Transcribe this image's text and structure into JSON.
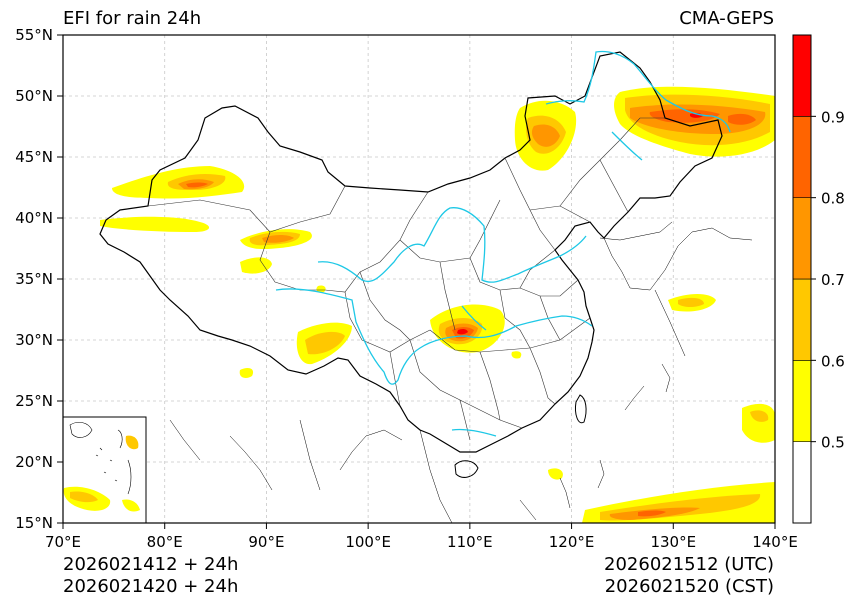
{
  "title_left": "EFI for rain 24h",
  "title_right": "CMA-GEPS",
  "info": {
    "left_line1": "2026021412 + 24h",
    "left_line2": "2026021420 + 24h",
    "right_line1": "2026021512 (UTC)",
    "right_line2": "2026021520 (CST)"
  },
  "map": {
    "lon_range": [
      70,
      140
    ],
    "lat_range": [
      15,
      55
    ],
    "lon_ticks": [
      70,
      80,
      90,
      100,
      110,
      120,
      130,
      140
    ],
    "lon_labels": [
      "70°E",
      "80°E",
      "90°E",
      "100°E",
      "110°E",
      "120°E",
      "130°E",
      "140°E"
    ],
    "lat_ticks": [
      15,
      20,
      25,
      30,
      35,
      40,
      45,
      50,
      55
    ],
    "lat_labels": [
      "15°N",
      "20°N",
      "25°N",
      "30°N",
      "35°N",
      "40°N",
      "45°N",
      "50°N",
      "55°N"
    ],
    "grid": true,
    "inset": "south-china-sea"
  },
  "colorbar": {
    "levels": [
      0.5,
      0.6,
      0.7,
      0.8,
      0.9
    ],
    "labels": [
      "0.5",
      "0.6",
      "0.7",
      "0.8",
      "0.9"
    ],
    "colors": [
      "#ffffff",
      "#ffff00",
      "#ffc800",
      "#ff9600",
      "#ff6400",
      "#ff0000"
    ]
  },
  "colors": {
    "border": "#000000",
    "province": "#333333",
    "river": "#1ec8e6",
    "grid": "#c8c8c8"
  }
}
